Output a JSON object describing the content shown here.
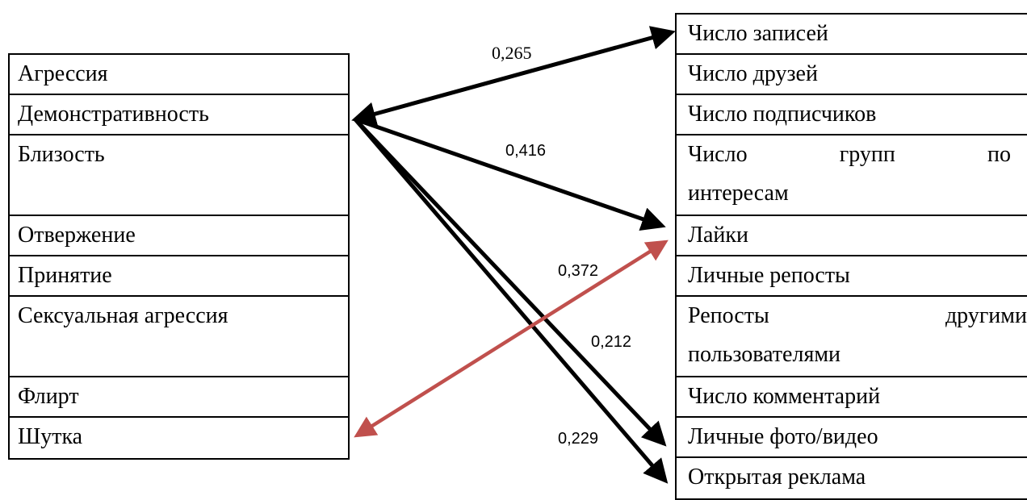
{
  "left_list": {
    "items": [
      {
        "label": "Агрессия"
      },
      {
        "label": "Демонстративность"
      },
      {
        "label": "Близость"
      },
      {
        "label": "Отвержение"
      },
      {
        "label": "Принятие"
      },
      {
        "label": "Сексуальная агрессия"
      },
      {
        "label": "Флирт"
      },
      {
        "label": "Шутка"
      }
    ]
  },
  "right_list": {
    "items": [
      {
        "label": "Число записей"
      },
      {
        "label": "Число друзей"
      },
      {
        "label": "Число подписчиков"
      },
      {
        "label_parts": [
          "Число",
          "групп",
          "по"
        ],
        "label_line2": "интересам"
      },
      {
        "label": "Лайки"
      },
      {
        "label": "Личные репосты"
      },
      {
        "label_parts": [
          "Репосты",
          "другими"
        ],
        "label_line2": "пользователями"
      },
      {
        "label": "Число комментарий"
      },
      {
        "label": "Личные фото/видео"
      },
      {
        "label": "Открытая реклама"
      }
    ]
  },
  "links": [
    {
      "coefficient": "0,265",
      "color": "#000000"
    },
    {
      "coefficient": "0,416",
      "color": "#000000"
    },
    {
      "coefficient": "0,372",
      "color": "#c0504d"
    },
    {
      "coefficient": "0,212",
      "color": "#000000"
    },
    {
      "coefficient": "0,229",
      "color": "#000000"
    }
  ]
}
